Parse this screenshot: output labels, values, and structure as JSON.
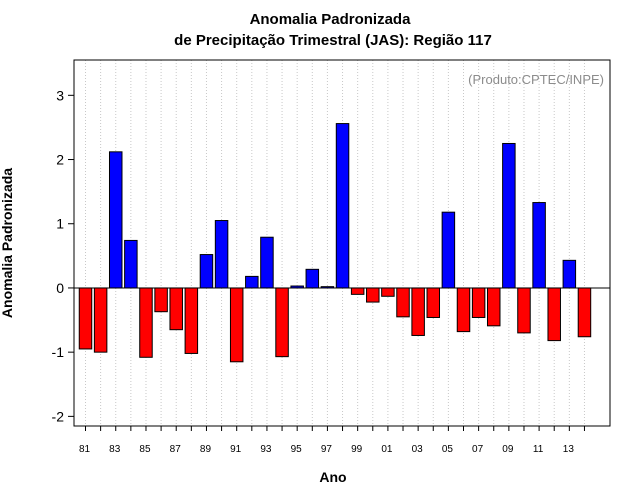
{
  "chart_data": {
    "type": "bar",
    "title_line1": "Anomalia Padronizada",
    "title_line2": "de Precipitação Trimestral (JAS): Região 117",
    "xlabel": "Ano",
    "ylabel": "Anomalia Padronizada",
    "annotation": "(Produto:CPTEC/INPE)",
    "ylim": [
      -2.15,
      3.55
    ],
    "yticks": [
      -2,
      -1,
      0,
      1,
      2,
      3
    ],
    "categories": [
      "81",
      "82",
      "83",
      "84",
      "85",
      "86",
      "87",
      "88",
      "89",
      "90",
      "91",
      "92",
      "93",
      "94",
      "95",
      "96",
      "97",
      "98",
      "99",
      "00",
      "01",
      "02",
      "03",
      "04",
      "05",
      "06",
      "07",
      "08",
      "09",
      "10",
      "11",
      "12",
      "13",
      "14"
    ],
    "tick_labels": [
      "81",
      "83",
      "85",
      "87",
      "89",
      "91",
      "93",
      "95",
      "97",
      "99",
      "01",
      "03",
      "05",
      "07",
      "09",
      "11",
      "13"
    ],
    "values": [
      -0.95,
      -1.0,
      2.12,
      0.74,
      -1.08,
      -0.37,
      -0.65,
      -1.02,
      0.52,
      1.05,
      -1.15,
      0.18,
      0.79,
      -1.07,
      0.03,
      0.29,
      0.02,
      2.56,
      -0.1,
      -0.22,
      -0.13,
      -0.45,
      -0.74,
      -0.46,
      1.18,
      -0.68,
      -0.46,
      -0.59,
      2.25,
      -0.7,
      1.33,
      -0.82,
      0.43,
      -0.76
    ],
    "colors": {
      "positive": "#0000ff",
      "negative": "#ff0000",
      "grid": "#c8c8c8",
      "zero_line": "#000000"
    },
    "grid": true
  }
}
